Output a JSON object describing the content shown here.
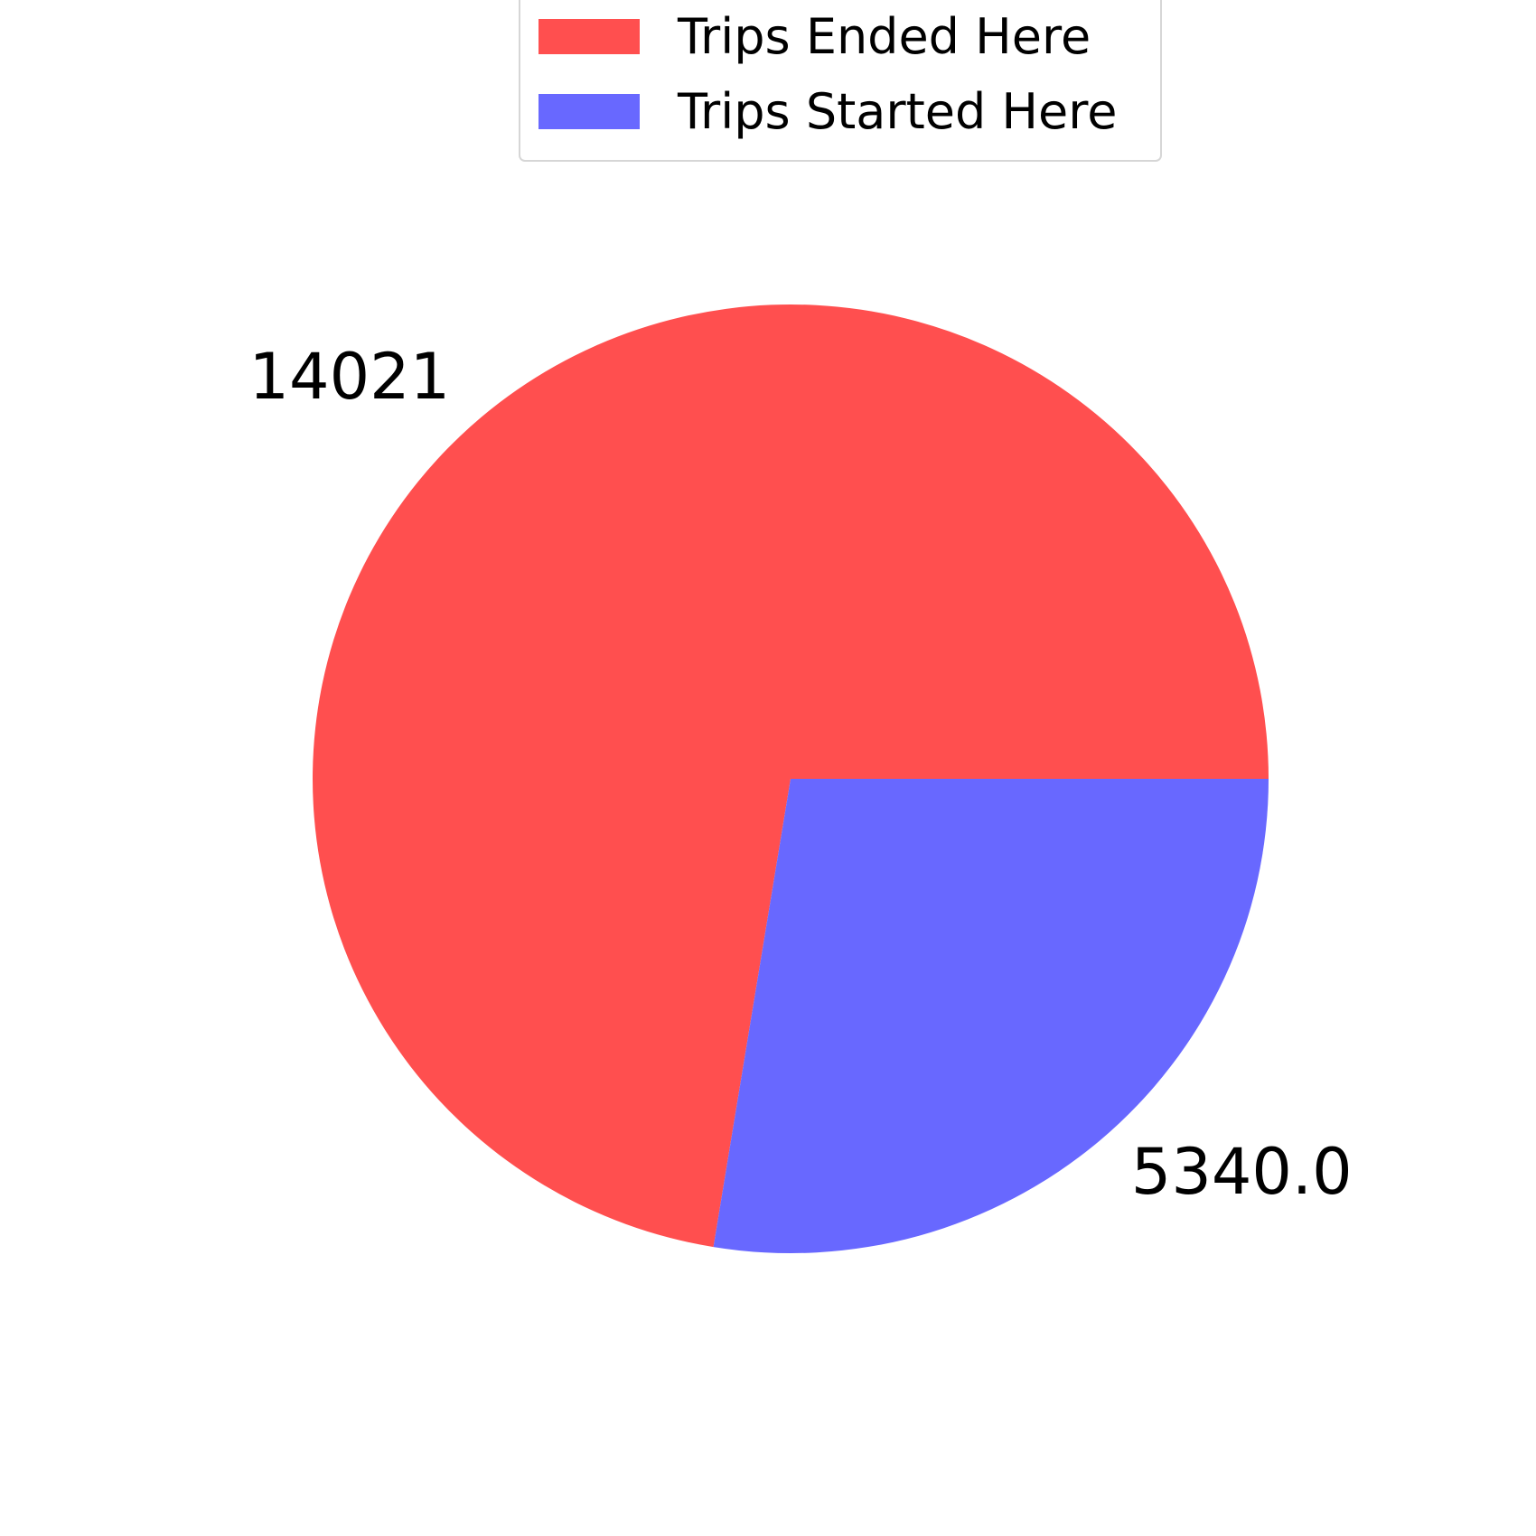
{
  "chart_data": {
    "type": "pie",
    "slices": [
      {
        "label": "Trips Ended Here",
        "value": 14021,
        "display": "14021",
        "color": "#ff4f4f"
      },
      {
        "label": "Trips Started Here",
        "value": 5340.0,
        "display": "5340.0",
        "color": "#6868ff"
      }
    ],
    "legend": {
      "placement": "top-center",
      "entries": [
        "Trips Ended Here",
        "Trips Started Here"
      ]
    },
    "title": "",
    "start_angle_deg": 0,
    "direction": "counterclockwise"
  }
}
